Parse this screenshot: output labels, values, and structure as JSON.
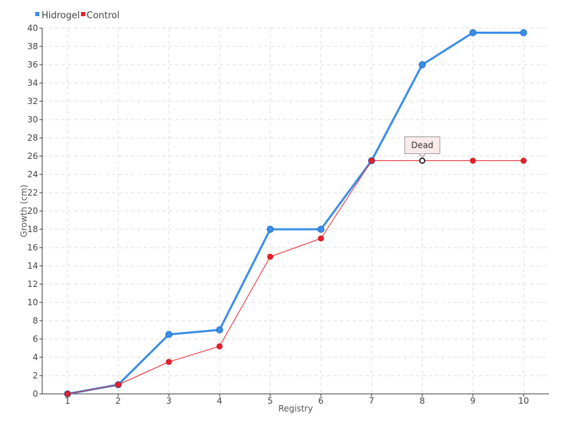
{
  "chart_data": {
    "type": "line",
    "xlabel": "Registry",
    "ylabel": "Growth (cm)",
    "ylim": [
      0,
      40
    ],
    "y_tick_step": 2,
    "x": [
      1,
      2,
      3,
      4,
      5,
      6,
      7,
      8,
      9,
      10
    ],
    "grid": true,
    "legend_position": "top-left",
    "series": [
      {
        "name": "Hidrogel",
        "color": "#3a8ee6",
        "values": [
          0,
          1,
          6.5,
          7,
          18,
          18,
          25.5,
          36,
          39.5,
          39.5
        ]
      },
      {
        "name": "Control",
        "color": "#e8202a",
        "values": [
          0,
          1,
          3.5,
          5.2,
          15,
          17,
          25.5,
          25.5,
          25.5,
          25.5
        ]
      }
    ],
    "annotation": {
      "text": "Dead",
      "series": "Control",
      "x": 8
    }
  }
}
